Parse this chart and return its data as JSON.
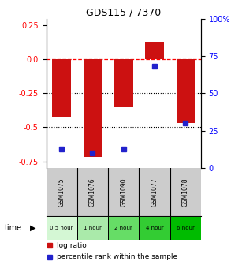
{
  "title": "GDS115 / 7370",
  "samples": [
    "GSM1075",
    "GSM1076",
    "GSM1090",
    "GSM1077",
    "GSM1078"
  ],
  "log_ratios": [
    -0.42,
    -0.72,
    -0.35,
    0.13,
    -0.47
  ],
  "percentile_ranks": [
    13,
    10,
    13,
    68,
    30
  ],
  "time_labels": [
    "0.5 hour",
    "1 hour",
    "2 hour",
    "4 hour",
    "6 hour"
  ],
  "time_colors": [
    "#d4f7d4",
    "#aaeaaa",
    "#66dd66",
    "#33cc33",
    "#00bb00"
  ],
  "bar_color": "#cc1111",
  "dot_color": "#2222cc",
  "ylim_left": [
    -0.8,
    0.3
  ],
  "ylim_right": [
    0,
    100
  ],
  "yticks_left": [
    0.25,
    0.0,
    -0.25,
    -0.5,
    -0.75
  ],
  "yticks_right": [
    100,
    75,
    50,
    25,
    0
  ],
  "bg_color": "#ffffff"
}
